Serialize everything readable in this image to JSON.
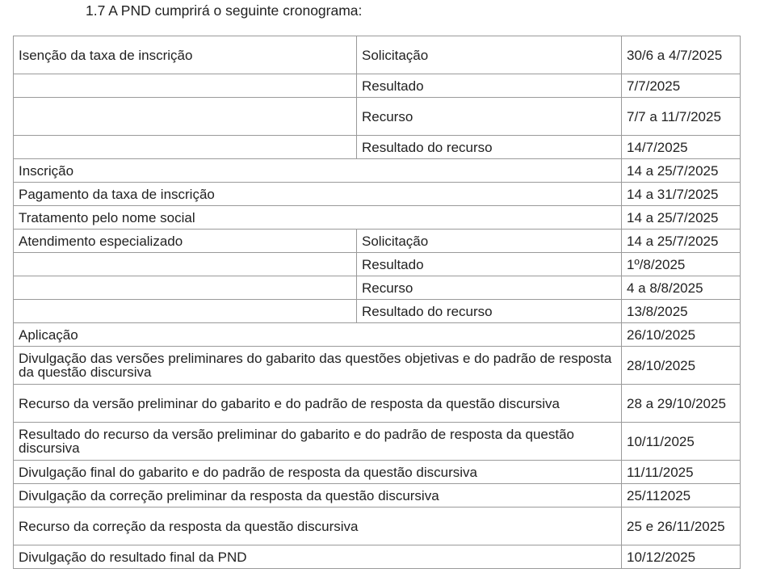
{
  "heading": "1.7 A PND cumprirá o seguinte cronograma:",
  "rows": [
    {
      "cells": [
        "Isenção da taxa de inscrição",
        "Solicitação",
        "30/6 a 4/7/2025"
      ],
      "h": 2
    },
    {
      "cells": [
        "",
        "Resultado",
        "7/7/2025"
      ]
    },
    {
      "cells": [
        "",
        "Recurso",
        "7/7 a 11/7/2025"
      ],
      "h": 2
    },
    {
      "cells": [
        "",
        "Resultado do recurso",
        "14/7/2025"
      ]
    },
    {
      "cells": [
        "Inscrição",
        "14 a 25/7/2025"
      ]
    },
    {
      "cells": [
        "Pagamento da taxa de inscrição",
        "14 a 31/7/2025"
      ]
    },
    {
      "cells": [
        "Tratamento pelo nome social",
        "14 a 25/7/2025"
      ]
    },
    {
      "cells": [
        "Atendimento especializado",
        "Solicitação",
        "14 a 25/7/2025"
      ]
    },
    {
      "cells": [
        "",
        "Resultado",
        "1º/8/2025"
      ]
    },
    {
      "cells": [
        "",
        "Recurso",
        "4 a 8/8/2025"
      ]
    },
    {
      "cells": [
        "",
        "Resultado do recurso",
        "13/8/2025"
      ]
    },
    {
      "cells": [
        "Aplicação",
        "26/10/2025"
      ]
    },
    {
      "cells": [
        "Divulgação das versões preliminares do gabarito das questões objetivas e do padrão de resposta da questão discursiva",
        "28/10/2025"
      ],
      "h": 2
    },
    {
      "cells": [
        "Recurso da versão preliminar do gabarito e do padrão de resposta da questão discursiva",
        "28 a 29/10/2025"
      ],
      "h": 2
    },
    {
      "cells": [
        "Resultado do recurso da versão preliminar do gabarito e do padrão de resposta da questão discursiva",
        "10/11/2025"
      ],
      "h": 2
    },
    {
      "cells": [
        "Divulgação final do gabarito e do padrão de resposta da questão discursiva",
        "11/11/2025"
      ]
    },
    {
      "cells": [
        "Divulgação da correção preliminar da resposta da questão discursiva",
        "25/112025"
      ]
    },
    {
      "cells": [
        "Recurso da correção da resposta da questão discursiva",
        "25 e 26/11/2025"
      ],
      "h": 2
    },
    {
      "cells": [
        "Divulgação do resultado final da PND",
        "10/12/2025"
      ]
    }
  ]
}
